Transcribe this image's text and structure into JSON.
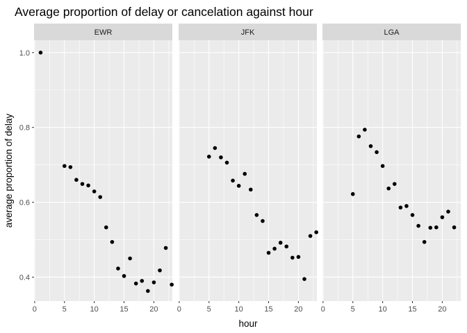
{
  "chart_data": {
    "type": "scatter",
    "title": "Average proportion of delay or cancelation against hour",
    "xlabel": "hour",
    "ylabel": "average proportion of delay",
    "xlim": [
      -0.1,
      23.1
    ],
    "ylim": [
      0.336,
      1.033
    ],
    "x_ticks": [
      0,
      5,
      10,
      15,
      20
    ],
    "y_ticks": [
      0.4,
      0.6,
      0.8,
      1.0
    ],
    "y_tick_labels": [
      "0.4",
      "0.6",
      "0.8",
      "1.0"
    ],
    "grid": true,
    "facets": [
      {
        "name": "EWR",
        "points": [
          [
            1,
            1.0
          ],
          [
            5,
            0.697
          ],
          [
            6,
            0.694
          ],
          [
            7,
            0.66
          ],
          [
            8,
            0.649
          ],
          [
            9,
            0.645
          ],
          [
            10,
            0.629
          ],
          [
            11,
            0.614
          ],
          [
            12,
            0.533
          ],
          [
            13,
            0.494
          ],
          [
            14,
            0.423
          ],
          [
            15,
            0.403
          ],
          [
            16,
            0.45
          ],
          [
            17,
            0.383
          ],
          [
            18,
            0.39
          ],
          [
            19,
            0.363
          ],
          [
            20,
            0.386
          ],
          [
            21,
            0.418
          ],
          [
            22,
            0.478
          ],
          [
            23,
            0.38
          ]
        ]
      },
      {
        "name": "JFK",
        "points": [
          [
            5,
            0.722
          ],
          [
            6,
            0.745
          ],
          [
            7,
            0.72
          ],
          [
            8,
            0.706
          ],
          [
            9,
            0.658
          ],
          [
            10,
            0.644
          ],
          [
            11,
            0.676
          ],
          [
            12,
            0.634
          ],
          [
            13,
            0.566
          ],
          [
            14,
            0.55
          ],
          [
            15,
            0.465
          ],
          [
            16,
            0.476
          ],
          [
            17,
            0.492
          ],
          [
            18,
            0.482
          ],
          [
            19,
            0.452
          ],
          [
            20,
            0.454
          ],
          [
            21,
            0.395
          ],
          [
            22,
            0.51
          ],
          [
            23,
            0.52
          ]
        ]
      },
      {
        "name": "LGA",
        "points": [
          [
            5,
            0.622
          ],
          [
            6,
            0.776
          ],
          [
            7,
            0.794
          ],
          [
            8,
            0.75
          ],
          [
            9,
            0.734
          ],
          [
            10,
            0.697
          ],
          [
            11,
            0.637
          ],
          [
            12,
            0.649
          ],
          [
            13,
            0.586
          ],
          [
            14,
            0.59
          ],
          [
            15,
            0.566
          ],
          [
            16,
            0.537
          ],
          [
            17,
            0.494
          ],
          [
            18,
            0.532
          ],
          [
            19,
            0.533
          ],
          [
            20,
            0.56
          ],
          [
            21,
            0.575
          ],
          [
            22,
            0.533
          ]
        ]
      }
    ],
    "colors": {
      "panel_background": "#ebebeb",
      "grid": "#ffffff",
      "strip_background": "#d9d9d9",
      "point": "#000000"
    }
  }
}
